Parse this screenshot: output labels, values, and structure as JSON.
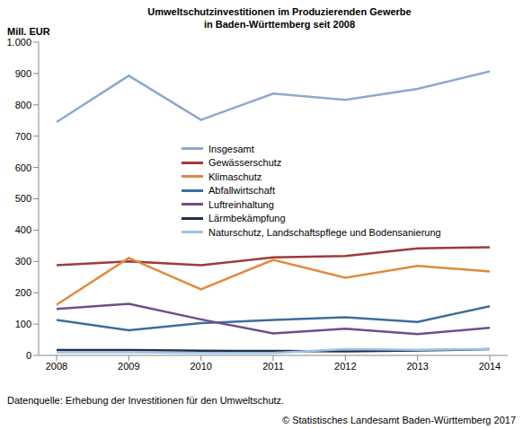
{
  "chart_data": {
    "type": "line",
    "title": "Umweltschutzinvestitionen im Produzierenden Gewerbe\nin Baden-Württemberg seit 2008",
    "y_label": "Mill. EUR",
    "categories": [
      "2008",
      "2009",
      "2010",
      "2011",
      "2012",
      "2013",
      "2014"
    ],
    "series": [
      {
        "name": "Insgesamt",
        "color": "#8EA9CF",
        "values": [
          745,
          893,
          752,
          836,
          816,
          851,
          907
        ]
      },
      {
        "name": "Gewässerschutz",
        "color": "#A0393A",
        "values": [
          288,
          300,
          288,
          313,
          317,
          342,
          345
        ]
      },
      {
        "name": "Klimaschutz",
        "color": "#E08A3C",
        "values": [
          162,
          311,
          211,
          305,
          248,
          286,
          268
        ]
      },
      {
        "name": "Abfallwirtschaft",
        "color": "#3F6E9B",
        "values": [
          113,
          80,
          103,
          113,
          122,
          107,
          157
        ]
      },
      {
        "name": "Luftreinhaltung",
        "color": "#6F4E8C",
        "values": [
          148,
          165,
          115,
          70,
          85,
          68,
          88
        ]
      },
      {
        "name": "Lärmbekämpfung",
        "color": "#1F2F4D",
        "values": [
          17,
          17,
          15,
          14,
          13,
          16,
          20
        ]
      },
      {
        "name": "Naturschutz, Landschaftspflege und Bodensanierung",
        "color": "#9DC3E6",
        "values": [
          10,
          10,
          8,
          8,
          20,
          18,
          20
        ]
      }
    ],
    "ylim": [
      0,
      1000
    ],
    "yticks": [
      0,
      100,
      200,
      300,
      400,
      500,
      600,
      700,
      800,
      900,
      {
        "value": 1000,
        "label": "1.000"
      }
    ],
    "grid": false,
    "legend": "center",
    "annotations": [
      "Datenquelle: Erhebung der Investitionen für den Umweltschutz.",
      "© Statistisches Landesamt Baden-Württemberg 2017"
    ]
  }
}
